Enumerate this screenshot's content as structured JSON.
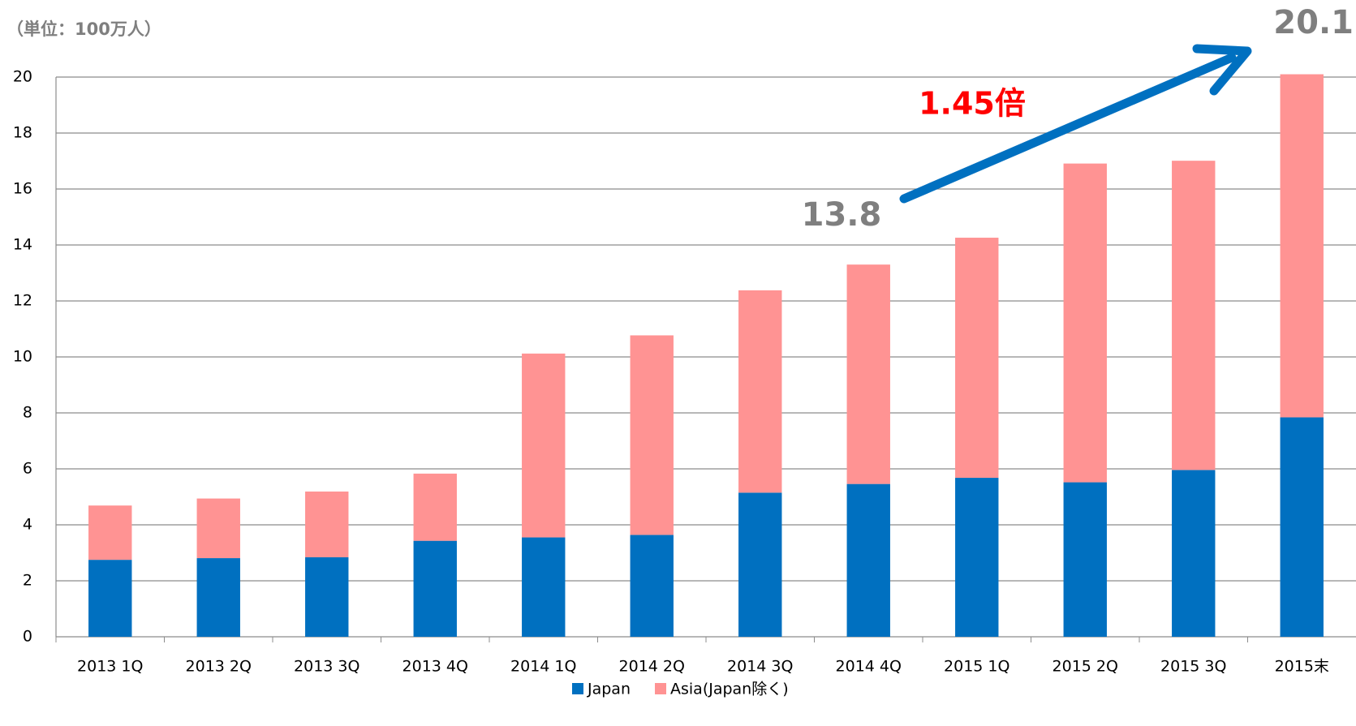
{
  "chart_data": {
    "type": "stacked_bar",
    "unit_label": "（単位：100万人）",
    "annotations": {
      "end_total": "20.1",
      "start_total": "13.8",
      "growth": "1.45倍"
    },
    "categories": [
      "2013 1Q",
      "2013 2Q",
      "2013 3Q",
      "2013 4Q",
      "2014 1Q",
      "2014 2Q",
      "2014 3Q",
      "2014 4Q",
      "2015 1Q",
      "2015 2Q",
      "2015 3Q",
      "2015末"
    ],
    "series": [
      {
        "name": "Japan",
        "color": "#0070c0",
        "values": [
          2.75,
          2.81,
          2.84,
          3.43,
          3.55,
          3.64,
          5.15,
          5.46,
          5.68,
          5.52,
          5.96,
          7.84
        ]
      },
      {
        "name": "Asia(Japan除く)",
        "color": "#ff9393",
        "values": [
          1.94,
          2.13,
          2.35,
          2.4,
          6.57,
          7.13,
          7.23,
          7.84,
          8.58,
          11.39,
          11.05,
          12.26
        ]
      }
    ],
    "ylim": [
      0,
      20
    ],
    "yticks": [
      0,
      2,
      4,
      6,
      8,
      10,
      12,
      14,
      16,
      18,
      20
    ],
    "grid": true,
    "legend": "bottom"
  }
}
